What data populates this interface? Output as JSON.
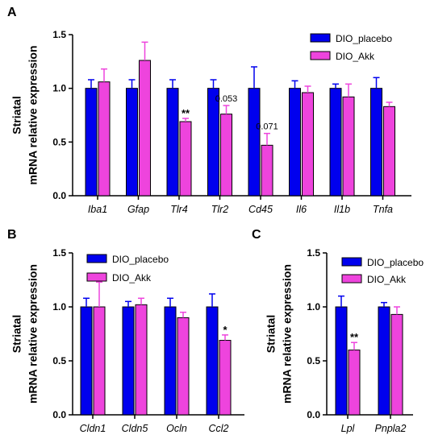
{
  "colors": {
    "placebo": "#0000ee",
    "akk": "#ee44dd"
  },
  "chart_data": [
    {
      "panel": "A",
      "type": "bar",
      "ylabel_line1": "Striatal",
      "ylabel_line2": "mRNA relative expression",
      "ylim": [
        0,
        1.5
      ],
      "yticks": [
        "0.0",
        "0.5",
        "1.0",
        "1.5"
      ],
      "legend": [
        "DIO_placebo",
        "DIO_Akk"
      ],
      "legend_position": "top-right",
      "categories": [
        "Iba1",
        "Gfap",
        "Tlr4",
        "Tlr2",
        "Cd45",
        "Il6",
        "Il1b",
        "Tnfa"
      ],
      "series": [
        {
          "name": "DIO_placebo",
          "values": [
            1.0,
            1.0,
            1.0,
            1.0,
            1.0,
            1.0,
            1.0,
            1.0
          ],
          "errors": [
            0.08,
            0.08,
            0.08,
            0.08,
            0.2,
            0.07,
            0.04,
            0.1
          ]
        },
        {
          "name": "DIO_Akk",
          "values": [
            1.06,
            1.26,
            0.69,
            0.76,
            0.47,
            0.96,
            0.92,
            0.83
          ],
          "errors": [
            0.12,
            0.17,
            0.03,
            0.08,
            0.11,
            0.06,
            0.12,
            0.04
          ]
        }
      ],
      "annotations": [
        {
          "category": "Tlr4",
          "text": "**"
        },
        {
          "category": "Tlr2",
          "text": "0.053"
        },
        {
          "category": "Cd45",
          "text": "0.071"
        }
      ]
    },
    {
      "panel": "B",
      "type": "bar",
      "ylabel_line1": "Striatal",
      "ylabel_line2": "mRNA relative expression",
      "ylim": [
        0,
        1.5
      ],
      "yticks": [
        "0.0",
        "0.5",
        "1.0",
        "1.5"
      ],
      "legend": [
        "DIO_placebo",
        "DIO_Akk"
      ],
      "legend_position": "top-left",
      "categories": [
        "Cldn1",
        "Cldn5",
        "Ocln",
        "Ccl2"
      ],
      "series": [
        {
          "name": "DIO_placebo",
          "values": [
            1.0,
            1.0,
            1.0,
            1.0
          ],
          "errors": [
            0.08,
            0.05,
            0.08,
            0.12
          ]
        },
        {
          "name": "DIO_Akk",
          "values": [
            1.0,
            1.02,
            0.9,
            0.69
          ],
          "errors": [
            0.23,
            0.06,
            0.05,
            0.05
          ]
        }
      ],
      "annotations": [
        {
          "category": "Ccl2",
          "text": "*"
        }
      ]
    },
    {
      "panel": "C",
      "type": "bar",
      "ylabel_line1": "Striatal",
      "ylabel_line2": "mRNA relative expression",
      "ylim": [
        0,
        1.5
      ],
      "yticks": [
        "0.0",
        "0.5",
        "1.0",
        "1.5"
      ],
      "legend": [
        "DIO_placebo",
        "DIO_Akk"
      ],
      "legend_position": "top-right",
      "categories": [
        "Lpl",
        "Pnpla2"
      ],
      "series": [
        {
          "name": "DIO_placebo",
          "values": [
            1.0,
            1.0
          ],
          "errors": [
            0.1,
            0.04
          ]
        },
        {
          "name": "DIO_Akk",
          "values": [
            0.6,
            0.93
          ],
          "errors": [
            0.07,
            0.07
          ]
        }
      ],
      "annotations": [
        {
          "category": "Lpl",
          "text": "**"
        }
      ]
    }
  ]
}
